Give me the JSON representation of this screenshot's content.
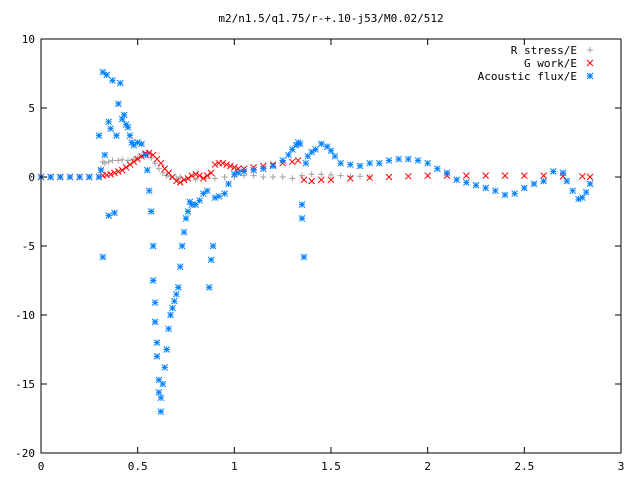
{
  "chart_data": {
    "type": "scatter",
    "title": "m2/n1.5/q1.75/r-+.10-j53/M0.02/512",
    "xlabel": "",
    "ylabel": "",
    "xlim": [
      0,
      3
    ],
    "ylim": [
      -20,
      10
    ],
    "x_ticks": [
      0,
      0.5,
      1,
      1.5,
      2,
      2.5,
      3
    ],
    "x_tick_labels": [
      "0",
      "0.5",
      "1",
      "1.5",
      "2",
      "2.5",
      "3"
    ],
    "y_ticks": [
      -20,
      -15,
      -10,
      -5,
      0,
      5,
      10
    ],
    "y_tick_labels": [
      "-20",
      "-15",
      "-10",
      "-5",
      "0",
      "5",
      "10"
    ],
    "grid": false,
    "legend_position": "top-right",
    "series": [
      {
        "name": "R stress/E",
        "marker": "plus",
        "color": "#a0a0a0",
        "points": [
          [
            0.0,
            0
          ],
          [
            0.05,
            0
          ],
          [
            0.1,
            0
          ],
          [
            0.15,
            0
          ],
          [
            0.2,
            0
          ],
          [
            0.25,
            0
          ],
          [
            0.3,
            0
          ],
          [
            0.31,
            0.6
          ],
          [
            0.32,
            1.1
          ],
          [
            0.33,
            1.0
          ],
          [
            0.35,
            1.1
          ],
          [
            0.37,
            1.2
          ],
          [
            0.4,
            1.2
          ],
          [
            0.42,
            1.25
          ],
          [
            0.45,
            1.2
          ],
          [
            0.48,
            1.3
          ],
          [
            0.5,
            1.4
          ],
          [
            0.52,
            1.5
          ],
          [
            0.55,
            1.6
          ],
          [
            0.57,
            1.4
          ],
          [
            0.59,
            1.0
          ],
          [
            0.61,
            0.6
          ],
          [
            0.63,
            0.3
          ],
          [
            0.65,
            0.1
          ],
          [
            0.67,
            0.0
          ],
          [
            0.7,
            -0.1
          ],
          [
            0.72,
            0.0
          ],
          [
            0.75,
            -0.2
          ],
          [
            0.8,
            -0.2
          ],
          [
            0.85,
            -0.1
          ],
          [
            0.9,
            -0.1
          ],
          [
            0.95,
            0.0
          ],
          [
            1.0,
            0.0
          ],
          [
            1.05,
            0.1
          ],
          [
            1.1,
            0.1
          ],
          [
            1.15,
            0.0
          ],
          [
            1.2,
            0.0
          ],
          [
            1.25,
            0.0
          ],
          [
            1.3,
            -0.1
          ],
          [
            1.35,
            0.1
          ],
          [
            1.4,
            0.2
          ],
          [
            1.45,
            0.2
          ],
          [
            1.5,
            0.15
          ],
          [
            1.55,
            0.1
          ],
          [
            1.6,
            0.05
          ],
          [
            1.65,
            0.05
          ],
          [
            1.7,
            0.0
          ]
        ]
      },
      {
        "name": "G work/E",
        "marker": "cross",
        "color": "#ff0000",
        "points": [
          [
            0.0,
            0
          ],
          [
            0.05,
            0
          ],
          [
            0.1,
            0
          ],
          [
            0.15,
            0
          ],
          [
            0.2,
            0
          ],
          [
            0.25,
            0
          ],
          [
            0.3,
            0
          ],
          [
            0.32,
            0.1
          ],
          [
            0.34,
            0.15
          ],
          [
            0.36,
            0.2
          ],
          [
            0.38,
            0.3
          ],
          [
            0.4,
            0.4
          ],
          [
            0.42,
            0.5
          ],
          [
            0.44,
            0.7
          ],
          [
            0.46,
            0.9
          ],
          [
            0.48,
            1.1
          ],
          [
            0.5,
            1.3
          ],
          [
            0.52,
            1.5
          ],
          [
            0.54,
            1.7
          ],
          [
            0.56,
            1.75
          ],
          [
            0.58,
            1.6
          ],
          [
            0.6,
            1.3
          ],
          [
            0.62,
            1.0
          ],
          [
            0.64,
            0.6
          ],
          [
            0.66,
            0.3
          ],
          [
            0.68,
            0.0
          ],
          [
            0.7,
            -0.3
          ],
          [
            0.72,
            -0.4
          ],
          [
            0.74,
            -0.2
          ],
          [
            0.76,
            -0.1
          ],
          [
            0.78,
            0.1
          ],
          [
            0.8,
            0.2
          ],
          [
            0.82,
            0.1
          ],
          [
            0.84,
            -0.1
          ],
          [
            0.86,
            0.1
          ],
          [
            0.88,
            0.3
          ],
          [
            0.9,
            0.9
          ],
          [
            0.92,
            1.0
          ],
          [
            0.94,
            1.0
          ],
          [
            0.96,
            0.9
          ],
          [
            0.98,
            0.8
          ],
          [
            1.0,
            0.7
          ],
          [
            1.02,
            0.6
          ],
          [
            1.05,
            0.6
          ],
          [
            1.1,
            0.7
          ],
          [
            1.15,
            0.8
          ],
          [
            1.2,
            0.9
          ],
          [
            1.25,
            1.0
          ],
          [
            1.3,
            1.1
          ],
          [
            1.33,
            1.2
          ],
          [
            1.36,
            -0.2
          ],
          [
            1.4,
            -0.3
          ],
          [
            1.45,
            -0.2
          ],
          [
            1.5,
            -0.2
          ],
          [
            1.6,
            -0.1
          ],
          [
            1.7,
            -0.05
          ],
          [
            1.8,
            0.0
          ],
          [
            1.9,
            0.05
          ],
          [
            2.0,
            0.1
          ],
          [
            2.1,
            0.1
          ],
          [
            2.2,
            0.1
          ],
          [
            2.3,
            0.1
          ],
          [
            2.4,
            0.1
          ],
          [
            2.5,
            0.1
          ],
          [
            2.6,
            0.1
          ],
          [
            2.7,
            0.05
          ],
          [
            2.8,
            0.05
          ],
          [
            2.84,
            0.0
          ]
        ]
      },
      {
        "name": "Acoustic flux/E",
        "marker": "star",
        "color": "#0080ff",
        "points": [
          [
            0.0,
            0
          ],
          [
            0.05,
            0
          ],
          [
            0.1,
            0
          ],
          [
            0.15,
            0
          ],
          [
            0.2,
            0
          ],
          [
            0.25,
            0
          ],
          [
            0.3,
            0
          ],
          [
            0.3,
            3.0
          ],
          [
            0.31,
            0.5
          ],
          [
            0.32,
            -5.8
          ],
          [
            0.32,
            7.6
          ],
          [
            0.33,
            1.6
          ],
          [
            0.34,
            7.4
          ],
          [
            0.35,
            4.0
          ],
          [
            0.35,
            -2.8
          ],
          [
            0.36,
            3.5
          ],
          [
            0.37,
            7.0
          ],
          [
            0.38,
            -2.6
          ],
          [
            0.39,
            3.0
          ],
          [
            0.4,
            5.3
          ],
          [
            0.41,
            6.8
          ],
          [
            0.42,
            4.2
          ],
          [
            0.43,
            4.5
          ],
          [
            0.44,
            3.8
          ],
          [
            0.45,
            3.6
          ],
          [
            0.46,
            3.0
          ],
          [
            0.47,
            2.5
          ],
          [
            0.48,
            2.3
          ],
          [
            0.5,
            2.5
          ],
          [
            0.52,
            2.4
          ],
          [
            0.54,
            1.6
          ],
          [
            0.55,
            0.5
          ],
          [
            0.56,
            -1.0
          ],
          [
            0.57,
            -2.5
          ],
          [
            0.58,
            -5.0
          ],
          [
            0.58,
            -7.5
          ],
          [
            0.59,
            -9.1
          ],
          [
            0.59,
            -10.5
          ],
          [
            0.6,
            -12.0
          ],
          [
            0.6,
            -13.0
          ],
          [
            0.61,
            -14.7
          ],
          [
            0.61,
            -15.6
          ],
          [
            0.62,
            -16.0
          ],
          [
            0.62,
            -17.0
          ],
          [
            0.63,
            -15.0
          ],
          [
            0.64,
            -13.8
          ],
          [
            0.65,
            -12.5
          ],
          [
            0.66,
            -11.0
          ],
          [
            0.67,
            -10.0
          ],
          [
            0.68,
            -9.5
          ],
          [
            0.69,
            -9.0
          ],
          [
            0.7,
            -8.5
          ],
          [
            0.71,
            -8.0
          ],
          [
            0.72,
            -6.5
          ],
          [
            0.73,
            -5.0
          ],
          [
            0.74,
            -4.0
          ],
          [
            0.75,
            -3.0
          ],
          [
            0.76,
            -2.5
          ],
          [
            0.77,
            -1.8
          ],
          [
            0.78,
            -2.0
          ],
          [
            0.8,
            -2.0
          ],
          [
            0.82,
            -1.7
          ],
          [
            0.84,
            -1.2
          ],
          [
            0.86,
            -1.0
          ],
          [
            0.87,
            -8.0
          ],
          [
            0.88,
            -6.0
          ],
          [
            0.89,
            -5.0
          ],
          [
            0.9,
            -1.5
          ],
          [
            0.92,
            -1.4
          ],
          [
            0.95,
            -1.2
          ],
          [
            0.97,
            -0.5
          ],
          [
            1.0,
            0.2
          ],
          [
            1.02,
            0.3
          ],
          [
            1.05,
            0.4
          ],
          [
            1.1,
            0.5
          ],
          [
            1.15,
            0.6
          ],
          [
            1.2,
            0.8
          ],
          [
            1.25,
            1.2
          ],
          [
            1.28,
            1.6
          ],
          [
            1.3,
            2.0
          ],
          [
            1.32,
            2.3
          ],
          [
            1.33,
            2.5
          ],
          [
            1.34,
            2.4
          ],
          [
            1.35,
            -2.0
          ],
          [
            1.35,
            -3.0
          ],
          [
            1.36,
            -5.8
          ],
          [
            1.37,
            1.0
          ],
          [
            1.38,
            1.5
          ],
          [
            1.4,
            1.8
          ],
          [
            1.42,
            2.0
          ],
          [
            1.45,
            2.4
          ],
          [
            1.48,
            2.2
          ],
          [
            1.5,
            1.9
          ],
          [
            1.52,
            1.5
          ],
          [
            1.55,
            1.0
          ],
          [
            1.6,
            0.9
          ],
          [
            1.65,
            0.8
          ],
          [
            1.7,
            1.0
          ],
          [
            1.75,
            1.0
          ],
          [
            1.8,
            1.2
          ],
          [
            1.85,
            1.3
          ],
          [
            1.9,
            1.3
          ],
          [
            1.95,
            1.2
          ],
          [
            2.0,
            1.0
          ],
          [
            2.05,
            0.6
          ],
          [
            2.1,
            0.3
          ],
          [
            2.15,
            -0.2
          ],
          [
            2.2,
            -0.4
          ],
          [
            2.25,
            -0.6
          ],
          [
            2.3,
            -0.8
          ],
          [
            2.35,
            -1.0
          ],
          [
            2.4,
            -1.3
          ],
          [
            2.45,
            -1.2
          ],
          [
            2.5,
            -0.8
          ],
          [
            2.55,
            -0.5
          ],
          [
            2.6,
            -0.3
          ],
          [
            2.65,
            0.4
          ],
          [
            2.7,
            0.3
          ],
          [
            2.72,
            -0.3
          ],
          [
            2.75,
            -1.0
          ],
          [
            2.78,
            -1.6
          ],
          [
            2.8,
            -1.5
          ],
          [
            2.82,
            -1.1
          ],
          [
            2.84,
            -0.5
          ]
        ]
      }
    ]
  }
}
